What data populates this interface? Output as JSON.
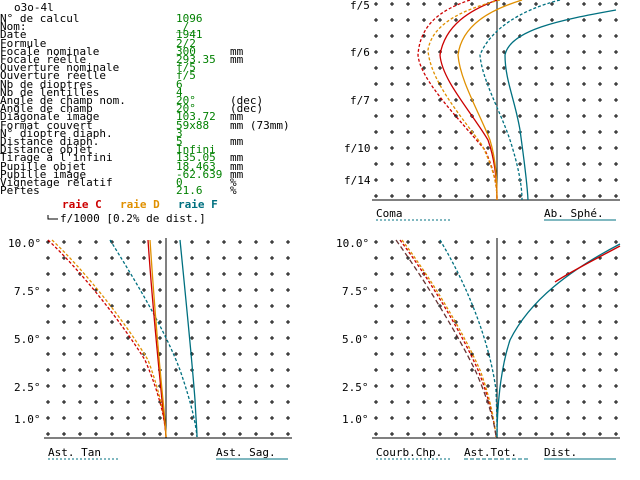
{
  "title": "o3o-4l",
  "params": [
    {
      "label": "N° de calcul",
      "value": "1096",
      "unit": ""
    },
    {
      "label": "Nom:",
      "value": "_/_",
      "unit": ""
    },
    {
      "label": "Date",
      "value": "1941",
      "unit": ""
    },
    {
      "label": "Formule",
      "value": "2/2",
      "unit": ""
    },
    {
      "label": "Focale nominale",
      "value": "300",
      "unit": "mm"
    },
    {
      "label": "Focale réelle",
      "value": "293.35",
      "unit": "mm"
    },
    {
      "label": "Ouverture nominale",
      "value": "f/5",
      "unit": ""
    },
    {
      "label": "Ouverture réelle",
      "value": "f/5",
      "unit": ""
    },
    {
      "label": "Nb de dioptres",
      "value": "6",
      "unit": ""
    },
    {
      "label": "Nb de lentilles",
      "value": "4",
      "unit": ""
    },
    {
      "label": "Angle de champ nom.",
      "value": "20°",
      "unit": "(dec)"
    },
    {
      "label": "Angle de champ",
      "value": "20°",
      "unit": "(dec)"
    },
    {
      "label": "Diagonale image",
      "value": "103.72",
      "unit": "mm"
    },
    {
      "label": "Format couvert",
      "value": "59x88",
      "unit": "mm (73mm)"
    },
    {
      "label": "N° dioptre diaph.",
      "value": "3",
      "unit": ""
    },
    {
      "label": "Distance diaph.",
      "value": "5",
      "unit": "mm"
    },
    {
      "label": "Distance objet",
      "value": "Infini",
      "unit": ""
    },
    {
      "label": "Tirage à l'infini",
      "value": "135.05",
      "unit": "mm"
    },
    {
      "label": "Pupille objet",
      "value": "18.463",
      "unit": "mm"
    },
    {
      "label": "Pupille image",
      "value": "-62.639",
      "unit": "mm"
    },
    {
      "label": "Vignetage relatif",
      "value": "0",
      "unit": "%"
    },
    {
      "label": "Pertes",
      "value": "21.6",
      "unit": "%"
    }
  ],
  "legend": {
    "c": "raie C",
    "d": "raie D",
    "f": "raie F"
  },
  "scale_note": "f/1000 [0.2% de dist.]",
  "aperture_labels": [
    "f/5",
    "f/6",
    "f/7",
    "f/10",
    "f/14"
  ],
  "field_labels": [
    "10.0°",
    "7.5°",
    "5.0°",
    "2.5°",
    "1.0°"
  ],
  "panel_labels": {
    "coma": "Coma",
    "sph": "Ab. Sphé.",
    "tan": "Ast. Tan",
    "sag": "Ast. Sag.",
    "curv": "Courb.Chp.",
    "tot": "Ast.Tot.",
    "dist": "Dist."
  },
  "colors": {
    "text": "#000000",
    "value": "#008000",
    "raie_c": "#cc0000",
    "raie_d": "#e09000",
    "raie_f": "#007080"
  }
}
